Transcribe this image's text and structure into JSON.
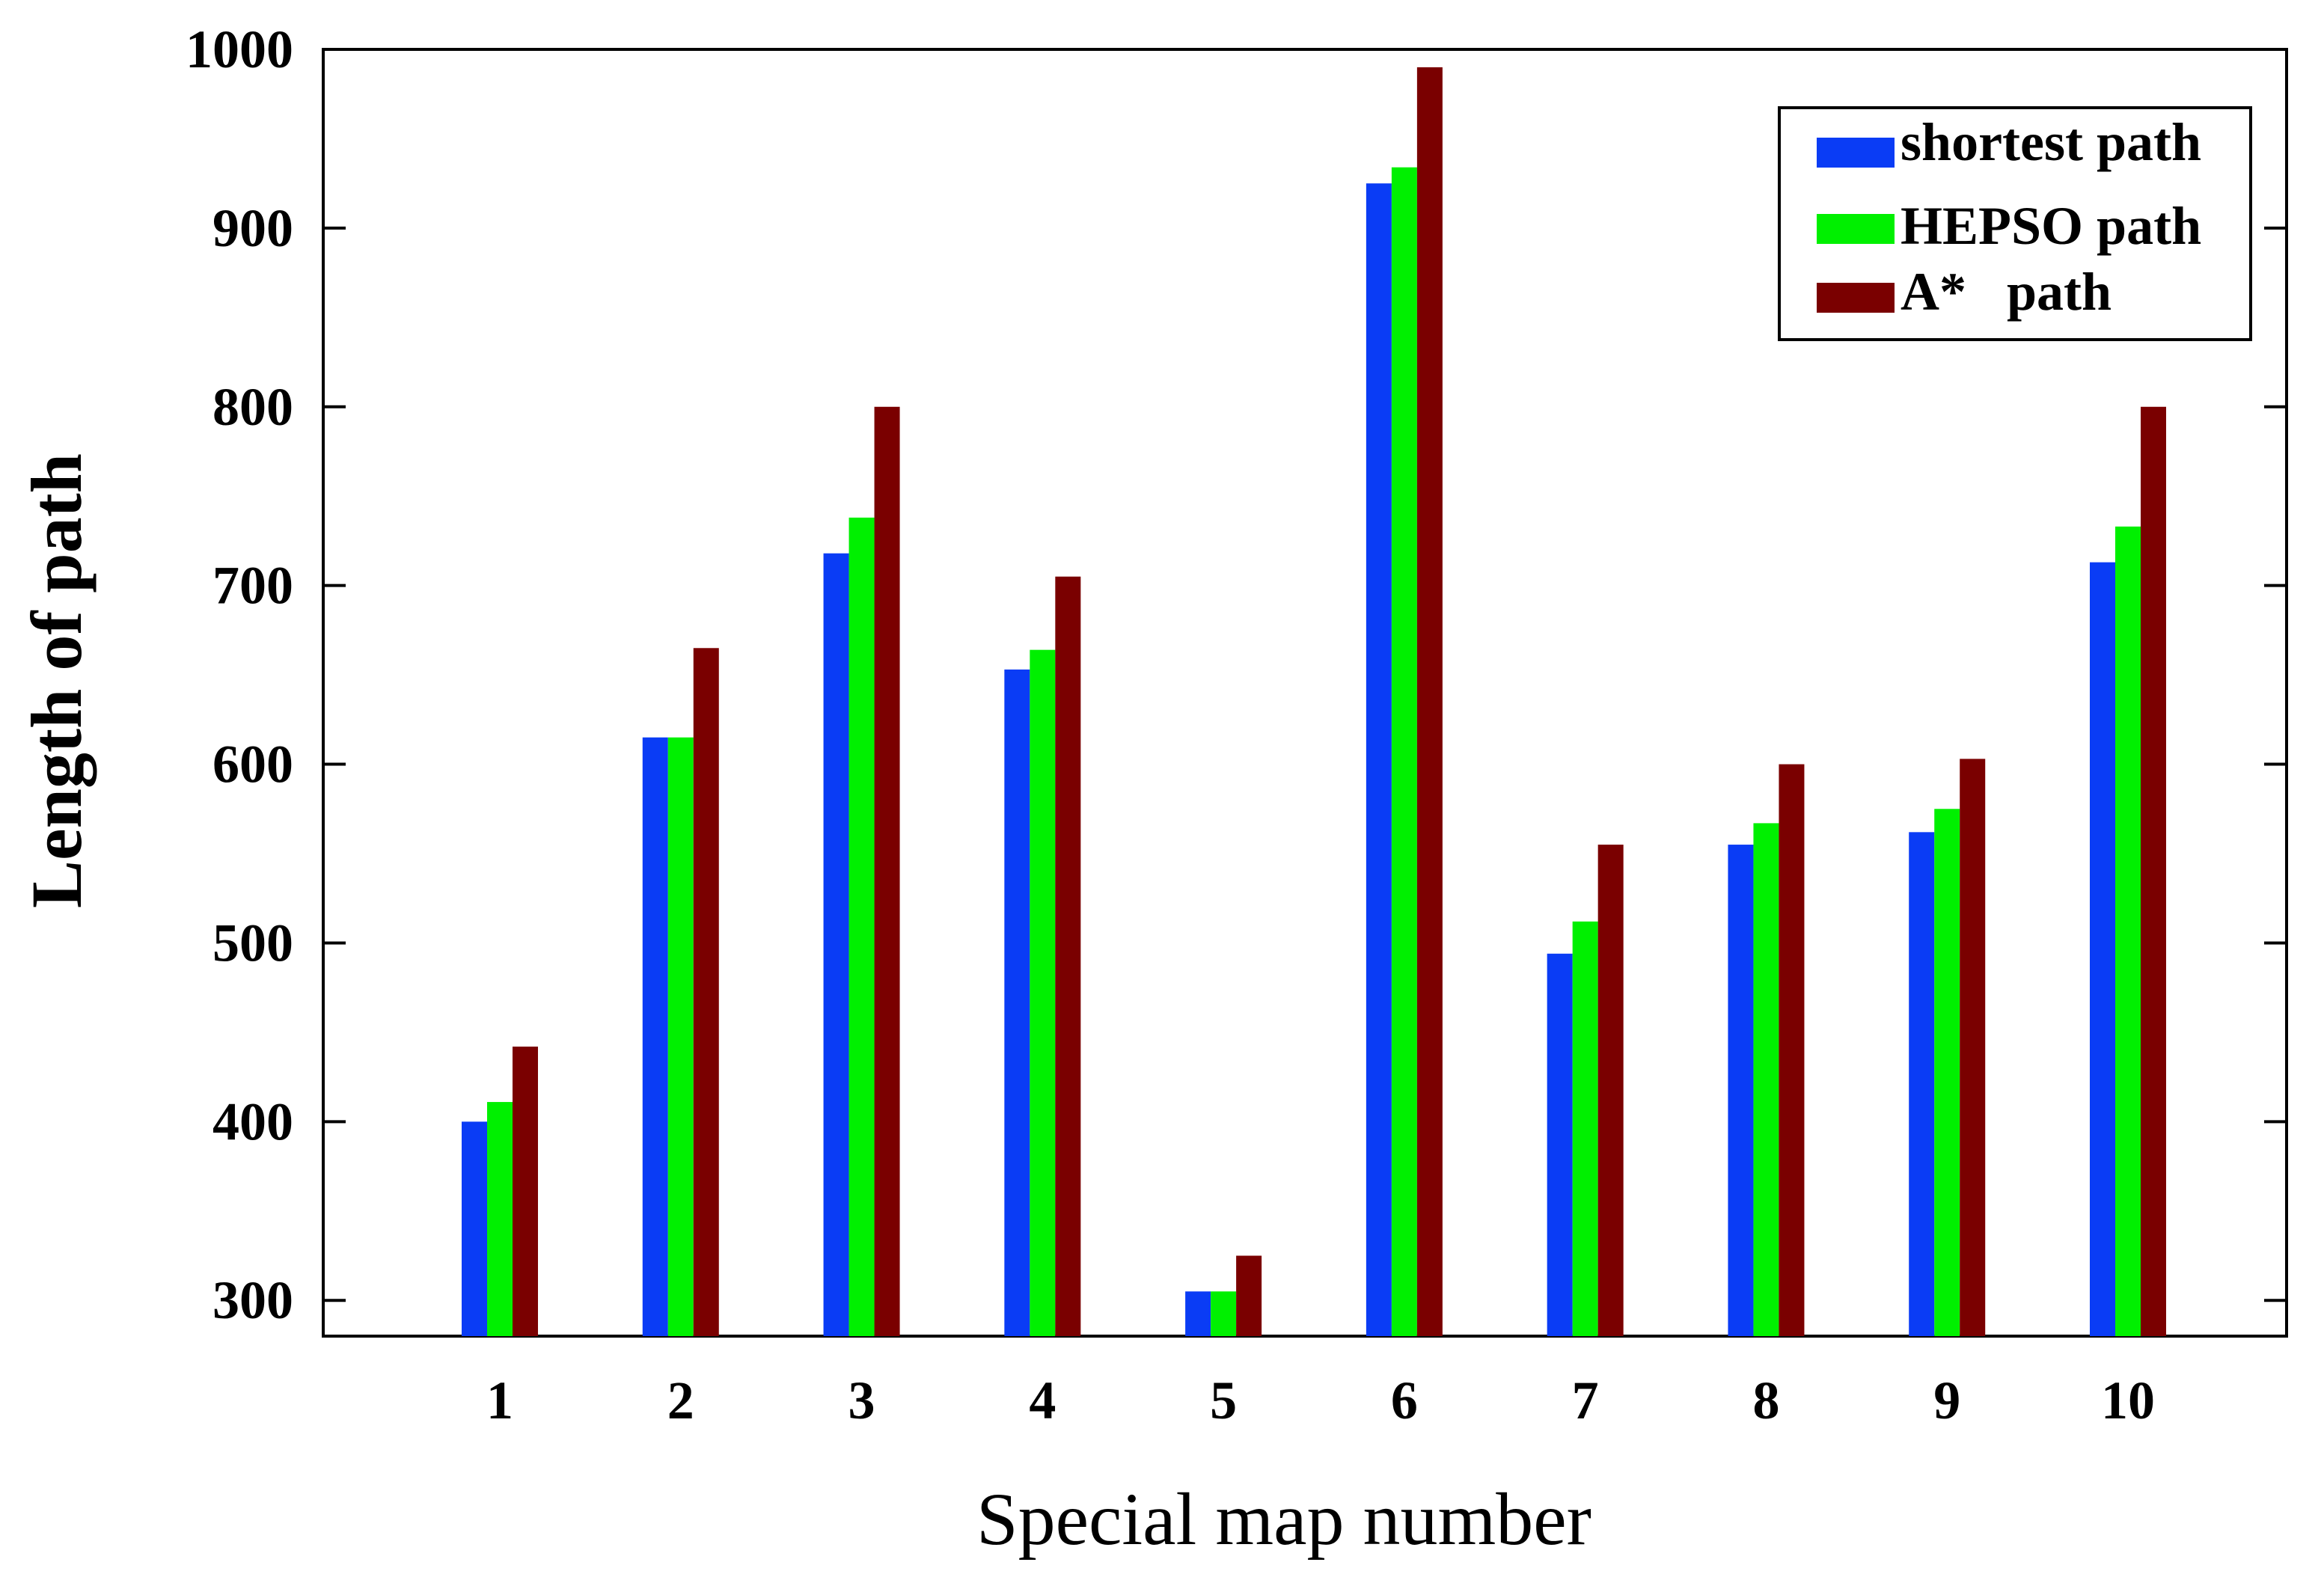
{
  "chart_data": {
    "type": "bar",
    "title": "",
    "xlabel": "Special map number",
    "ylabel": "Length of path",
    "categories": [
      "1",
      "2",
      "3",
      "4",
      "5",
      "6",
      "7",
      "8",
      "9",
      "10"
    ],
    "yticks": [
      "300",
      "400",
      "500",
      "600",
      "700",
      "800",
      "900",
      "1000"
    ],
    "ylim": [
      280,
      1000
    ],
    "grid": false,
    "legend_position": "top-right",
    "series": [
      {
        "name": "shortest path",
        "color": "#0a3cf5",
        "values": [
          400,
          615,
          718,
          653,
          305,
          925,
          494,
          555,
          562,
          713
        ]
      },
      {
        "name": "HEPSO path",
        "color": "#00f000",
        "values": [
          411,
          615,
          738,
          664,
          305,
          934,
          512,
          567,
          575,
          733
        ]
      },
      {
        "name": "A*   path",
        "color": "#7a0000",
        "values": [
          442,
          665,
          800,
          705,
          325,
          990,
          555,
          600,
          603,
          800
        ]
      }
    ]
  }
}
